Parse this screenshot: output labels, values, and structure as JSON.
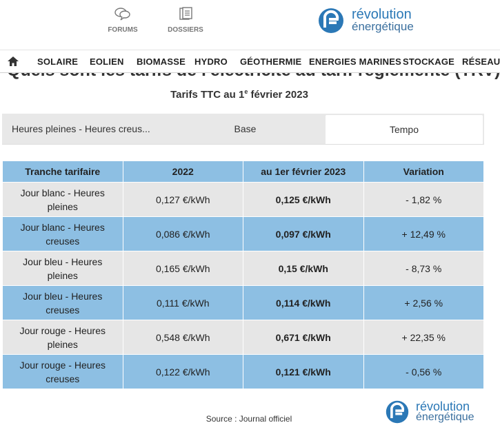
{
  "header": {
    "links": [
      "FORUMS",
      "DOSSIERS"
    ],
    "logo": [
      "révolution",
      "énergétique"
    ]
  },
  "nav": [
    "SOLAIRE",
    "EOLIEN",
    "BIOMASSE",
    "HYDRO",
    "GÉOTHERMIE",
    "ENERGIES MARINES",
    "STOCKAGE",
    "RÉSEAUX"
  ],
  "article": {
    "title": "Quels sont les tarifs de l'électricité au tarif réglementé (TRV) ?",
    "subtitle": [
      "Tarifs TTC au 1",
      "e",
      " février 2023"
    ]
  },
  "tabs": {
    "items": [
      "Heures pleines - Heures creus...",
      "Base",
      "Tempo"
    ],
    "active": 2
  },
  "table": {
    "headers": [
      "Tranche tarifaire",
      "2022",
      "au 1er février 2023",
      "Variation"
    ],
    "rows": [
      [
        "Jour blanc - Heures pleines",
        "0,127 €/kWh",
        "0,125 €/kWh",
        "- 1,82 %"
      ],
      [
        "Jour blanc - Heures creuses",
        "0,086 €/kWh",
        "0,097 €/kWh",
        "+ 12,49 %"
      ],
      [
        "Jour bleu - Heures pleines",
        "0,165 €/kWh",
        "0,15 €/kWh",
        "- 8,73 %"
      ],
      [
        "Jour bleu - Heures creuses",
        "0,111 €/kWh",
        "0,114 €/kWh",
        "+ 2,56 %"
      ],
      [
        "Jour rouge - Heures pleines",
        "0,548 €/kWh",
        "0,671 €/kWh",
        "+ 22,35 %"
      ],
      [
        "Jour rouge - Heures creuses",
        "0,122 €/kWh",
        "0,121 €/kWh",
        "- 0,56 %"
      ]
    ]
  },
  "footer": {
    "source": "Source : Journal officiel",
    "logo": [
      "révolution",
      "énergétique"
    ]
  }
}
